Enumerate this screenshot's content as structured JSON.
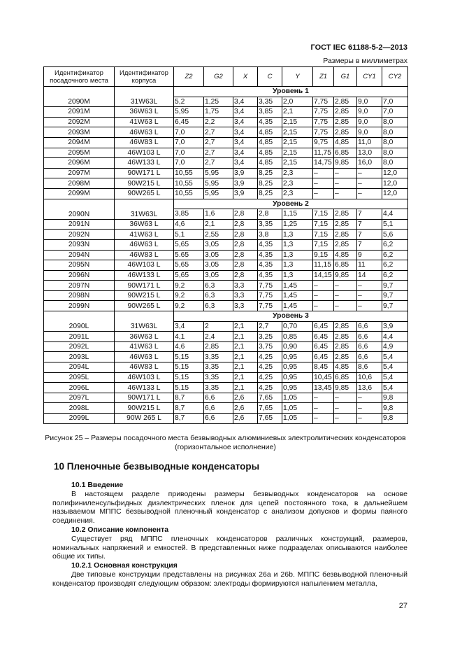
{
  "header": {
    "doc_id": "ГОСТ IEC 61188-5-2—2013",
    "units": "Размеры в миллиметрах"
  },
  "table": {
    "columns": [
      "Идентификатор посадочного места",
      "Идентификатор корпуса",
      "Z2",
      "G2",
      "X",
      "C",
      "Y",
      "Z1",
      "G1",
      "CY1",
      "CY2"
    ],
    "levels": [
      {
        "label": "Уровень 1",
        "rows": [
          [
            "2090M",
            "31W63L",
            "5,2",
            "1,25",
            "3,4",
            "3,35",
            "2,0",
            "7,75",
            "2,85",
            "9,0",
            "7,0"
          ],
          [
            "2091M",
            "36W63 L",
            "5,95",
            "1,75",
            "3,4",
            "3,85",
            "2,1",
            "7,75",
            "2,85",
            "9,0",
            "7,0"
          ],
          [
            "2092M",
            "41W63 L",
            "6,45",
            "2,2",
            "3,4",
            "4,35",
            "2,15",
            "7,75",
            "2,85",
            "9,0",
            "8,0"
          ],
          [
            "2093M",
            "46W63 L",
            "7,0",
            "2,7",
            "3,4",
            "4,85",
            "2,15",
            "7,75",
            "2,85",
            "9,0",
            "8,0"
          ],
          [
            "2094M",
            "46W83 L",
            "7,0",
            "2,7",
            "3,4",
            "4,85",
            "2,15",
            "9,75",
            "4,85",
            "11,0",
            "8,0"
          ],
          [
            "2095M",
            "46W103 L",
            "7,0",
            "2,7",
            "3,4",
            "4,85",
            "2,15",
            "11,75",
            "6,85",
            "13,0",
            "8,0"
          ],
          [
            "2096M",
            "46W133 L",
            "7,0",
            "2,7",
            "3,4",
            "4,85",
            "2,15",
            "14,75",
            "9,85",
            "16,0",
            "8,0"
          ],
          [
            "2097M",
            "90W171 L",
            "10,55",
            "5,95",
            "3,9",
            "8,25",
            "2,3",
            "–",
            "–",
            "–",
            "12,0"
          ],
          [
            "2098M",
            "90W215 L",
            "10,55",
            "5,95",
            "3,9",
            "8,25",
            "2,3",
            "–",
            "–",
            "–",
            "12,0"
          ],
          [
            "2099M",
            "90W265 L",
            "10,55",
            "5,95",
            "3,9",
            "8,25",
            "2,3",
            "–",
            "–",
            "–",
            "12,0"
          ]
        ]
      },
      {
        "label": "Уровень 2",
        "rows": [
          [
            "2090N",
            "31W63L",
            "3,85",
            "1,6",
            "2,8",
            "2,8",
            "1,15",
            "7,15",
            "2,85",
            "7",
            "4,4"
          ],
          [
            "2091N",
            "36W63 L",
            "4,6",
            "2,1",
            "2,8",
            "3,35",
            "1,25",
            "7,15",
            "2,85",
            "7",
            "5,1"
          ],
          [
            "2092N",
            "41W63 L",
            "5,1",
            "2,55",
            "2,8",
            "3,8",
            "1,3",
            "7,15",
            "2,85",
            "7",
            "5,6"
          ],
          [
            "2093N",
            "46W63 L",
            "5,65",
            "3,05",
            "2,8",
            "4,35",
            "1,3",
            "7,15",
            "2,85",
            "7",
            "6,2"
          ],
          [
            "2094N",
            "46W83 L",
            "5.65",
            "3,05",
            "2,8",
            "4,35",
            "1,3",
            "9,15",
            "4,85",
            "9",
            "6,2"
          ],
          [
            "2095N",
            "46W103 L",
            "5,65",
            "3,05",
            "2,8",
            "4,35",
            "1,3",
            "11,15",
            "6,85",
            "11",
            "6,2"
          ],
          [
            "2096N",
            "46W133 L",
            "5,65",
            "3,05",
            "2,8",
            "4,35",
            "1,3",
            "14,15",
            "9,85",
            "14",
            "6,2"
          ],
          [
            "2097N",
            "90W171 L",
            "9,2",
            "6,3",
            "3,3",
            "7,75",
            "1,45",
            "–",
            "–",
            "–",
            "9,7"
          ],
          [
            "2098N",
            "90W215 L",
            "9,2",
            "6,3",
            "3,3",
            "7,75",
            "1,45",
            "–",
            "–",
            "–",
            "9,7"
          ],
          [
            "2099N",
            "90W265 L",
            "9,2",
            "6,3",
            "3,3",
            "7,75",
            "1,45",
            "–",
            "–",
            "–",
            "9,7"
          ]
        ]
      },
      {
        "label": "Уровень 3",
        "rows": [
          [
            "2090L",
            "31W63L",
            "3,4",
            "2",
            "2,1",
            "2,7",
            "0,70",
            "6,45",
            "2,85",
            "6,6",
            "3,9"
          ],
          [
            "2091L",
            "36W63 L",
            "4,1",
            "2,4",
            "2,1",
            "3,25",
            "0,85",
            "6,45",
            "2,85",
            "6,6",
            "4,4"
          ],
          [
            "2092L",
            "41W63 L",
            "4,6",
            "2,85",
            "2,1",
            "3,75",
            "0,90",
            "6,45",
            "2,85",
            "6,6",
            "4,9"
          ],
          [
            "2093L",
            "46W63 L",
            "5,15",
            "3,35",
            "2,1",
            "4,25",
            "0,95",
            "6,45",
            "2,85",
            "6,6",
            "5,4"
          ],
          [
            "2094L",
            "46W83 L",
            "5,15",
            "3,35",
            "2,1",
            "4,25",
            "0,95",
            "8,45",
            "4,85",
            "8,6",
            "5,4"
          ],
          [
            "2095L",
            "46W103 L",
            "5,15",
            "3,35",
            "2,1",
            "4,25",
            "0,95",
            "10,45",
            "6,85",
            "10,6",
            "5,4"
          ],
          [
            "2096L",
            "46W133 L",
            "5,15",
            "3,35",
            "2,1",
            "4,25",
            "0,95",
            "13,45",
            "9,85",
            "13,6",
            "5,4"
          ],
          [
            "2097L",
            "90W171 L",
            "8,7",
            "6,6",
            "2,6",
            "7,65",
            "1,05",
            "–",
            "–",
            "–",
            "9,8"
          ],
          [
            "2098L",
            "90W215 L",
            "8,7",
            "6,6",
            "2,6",
            "7,65",
            "1,05",
            "–",
            "–",
            "–",
            "9,8"
          ],
          [
            "2099L",
            "90W 265 L",
            "8,7",
            "6,6",
            "2,6",
            "7,65",
            "1,05",
            "–",
            "–",
            "–",
            "9,8"
          ]
        ]
      }
    ]
  },
  "caption": "Рисунок 25 – Размеры посадочного места безвыводных алюминиевых электролитических конденсаторов (горизонтальное исполнение)",
  "section": {
    "title": "10 Пленочные безвыводные конденсаторы",
    "s1_title": "10.1 Введение",
    "s1_text": "В настоящем разделе приводены размеры безвыводных конденсаторов на основе полифиниленсульфидных диэлектрических пленок для цепей постоянного тока, в дальнейшем называемом МППС безвыводной пленочный конденсатор с анализом допусков и формы паяного соединения.",
    "s2_title": "10.2 Описание компонента",
    "s2_text": "Существует ряд МППС пленочных конденсаторов различных конструкций, размеров, номинальных напряжений и емкостей. В представленных ниже подразделах описываются наиболее общие их типы.",
    "s3_title": "10.2.1 Основная конструкция",
    "s3_text": "Две типовые конструкции представлены на рисунках 26a и 26b. МППС безвыводной пленочный конденсатор производят следующим образом: электроды формируются напылением металла,"
  },
  "page_number": "27"
}
